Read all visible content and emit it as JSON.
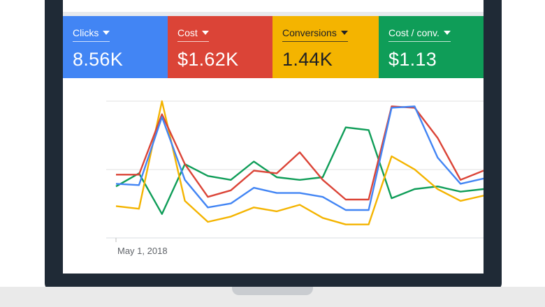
{
  "metrics": [
    {
      "label": "Clicks",
      "value": "8.56K",
      "color": "#4285f4"
    },
    {
      "label": "Cost",
      "value": "$1.62K",
      "color": "#db4437"
    },
    {
      "label": "Conversions",
      "value": "1.44K",
      "color": "#f4b400"
    },
    {
      "label": "Cost / conv.",
      "value": "$1.13",
      "color": "#0f9d58"
    }
  ],
  "chart": {
    "x_label_start": "May 1, 2018"
  },
  "chart_data": {
    "type": "line",
    "title": "",
    "xlabel": "",
    "ylabel": "",
    "ylim": [
      0,
      100
    ],
    "x": [
      0,
      1,
      2,
      3,
      4,
      5,
      6,
      7,
      8,
      9,
      10,
      11,
      12,
      13,
      14,
      15,
      16
    ],
    "series": [
      {
        "name": "Clicks",
        "color": "#4285f4",
        "values": [
          37,
          36,
          88,
          40,
          19,
          22,
          34,
          30,
          30,
          27,
          17,
          17,
          95,
          96,
          57,
          37,
          41
        ]
      },
      {
        "name": "Cost",
        "color": "#db4437",
        "values": [
          44,
          44,
          90,
          52,
          27,
          32,
          47,
          45,
          61,
          40,
          25,
          25,
          96,
          95,
          72,
          40,
          47
        ]
      },
      {
        "name": "Conversions",
        "color": "#f4b400",
        "values": [
          20,
          18,
          100,
          24,
          8,
          12,
          19,
          16,
          21,
          11,
          6,
          6,
          58,
          48,
          33,
          24,
          28
        ]
      },
      {
        "name": "Cost / conv.",
        "color": "#0f9d58",
        "values": [
          35,
          45,
          14,
          52,
          43,
          40,
          54,
          42,
          40,
          42,
          80,
          78,
          26,
          33,
          35,
          31,
          33
        ]
      }
    ]
  }
}
